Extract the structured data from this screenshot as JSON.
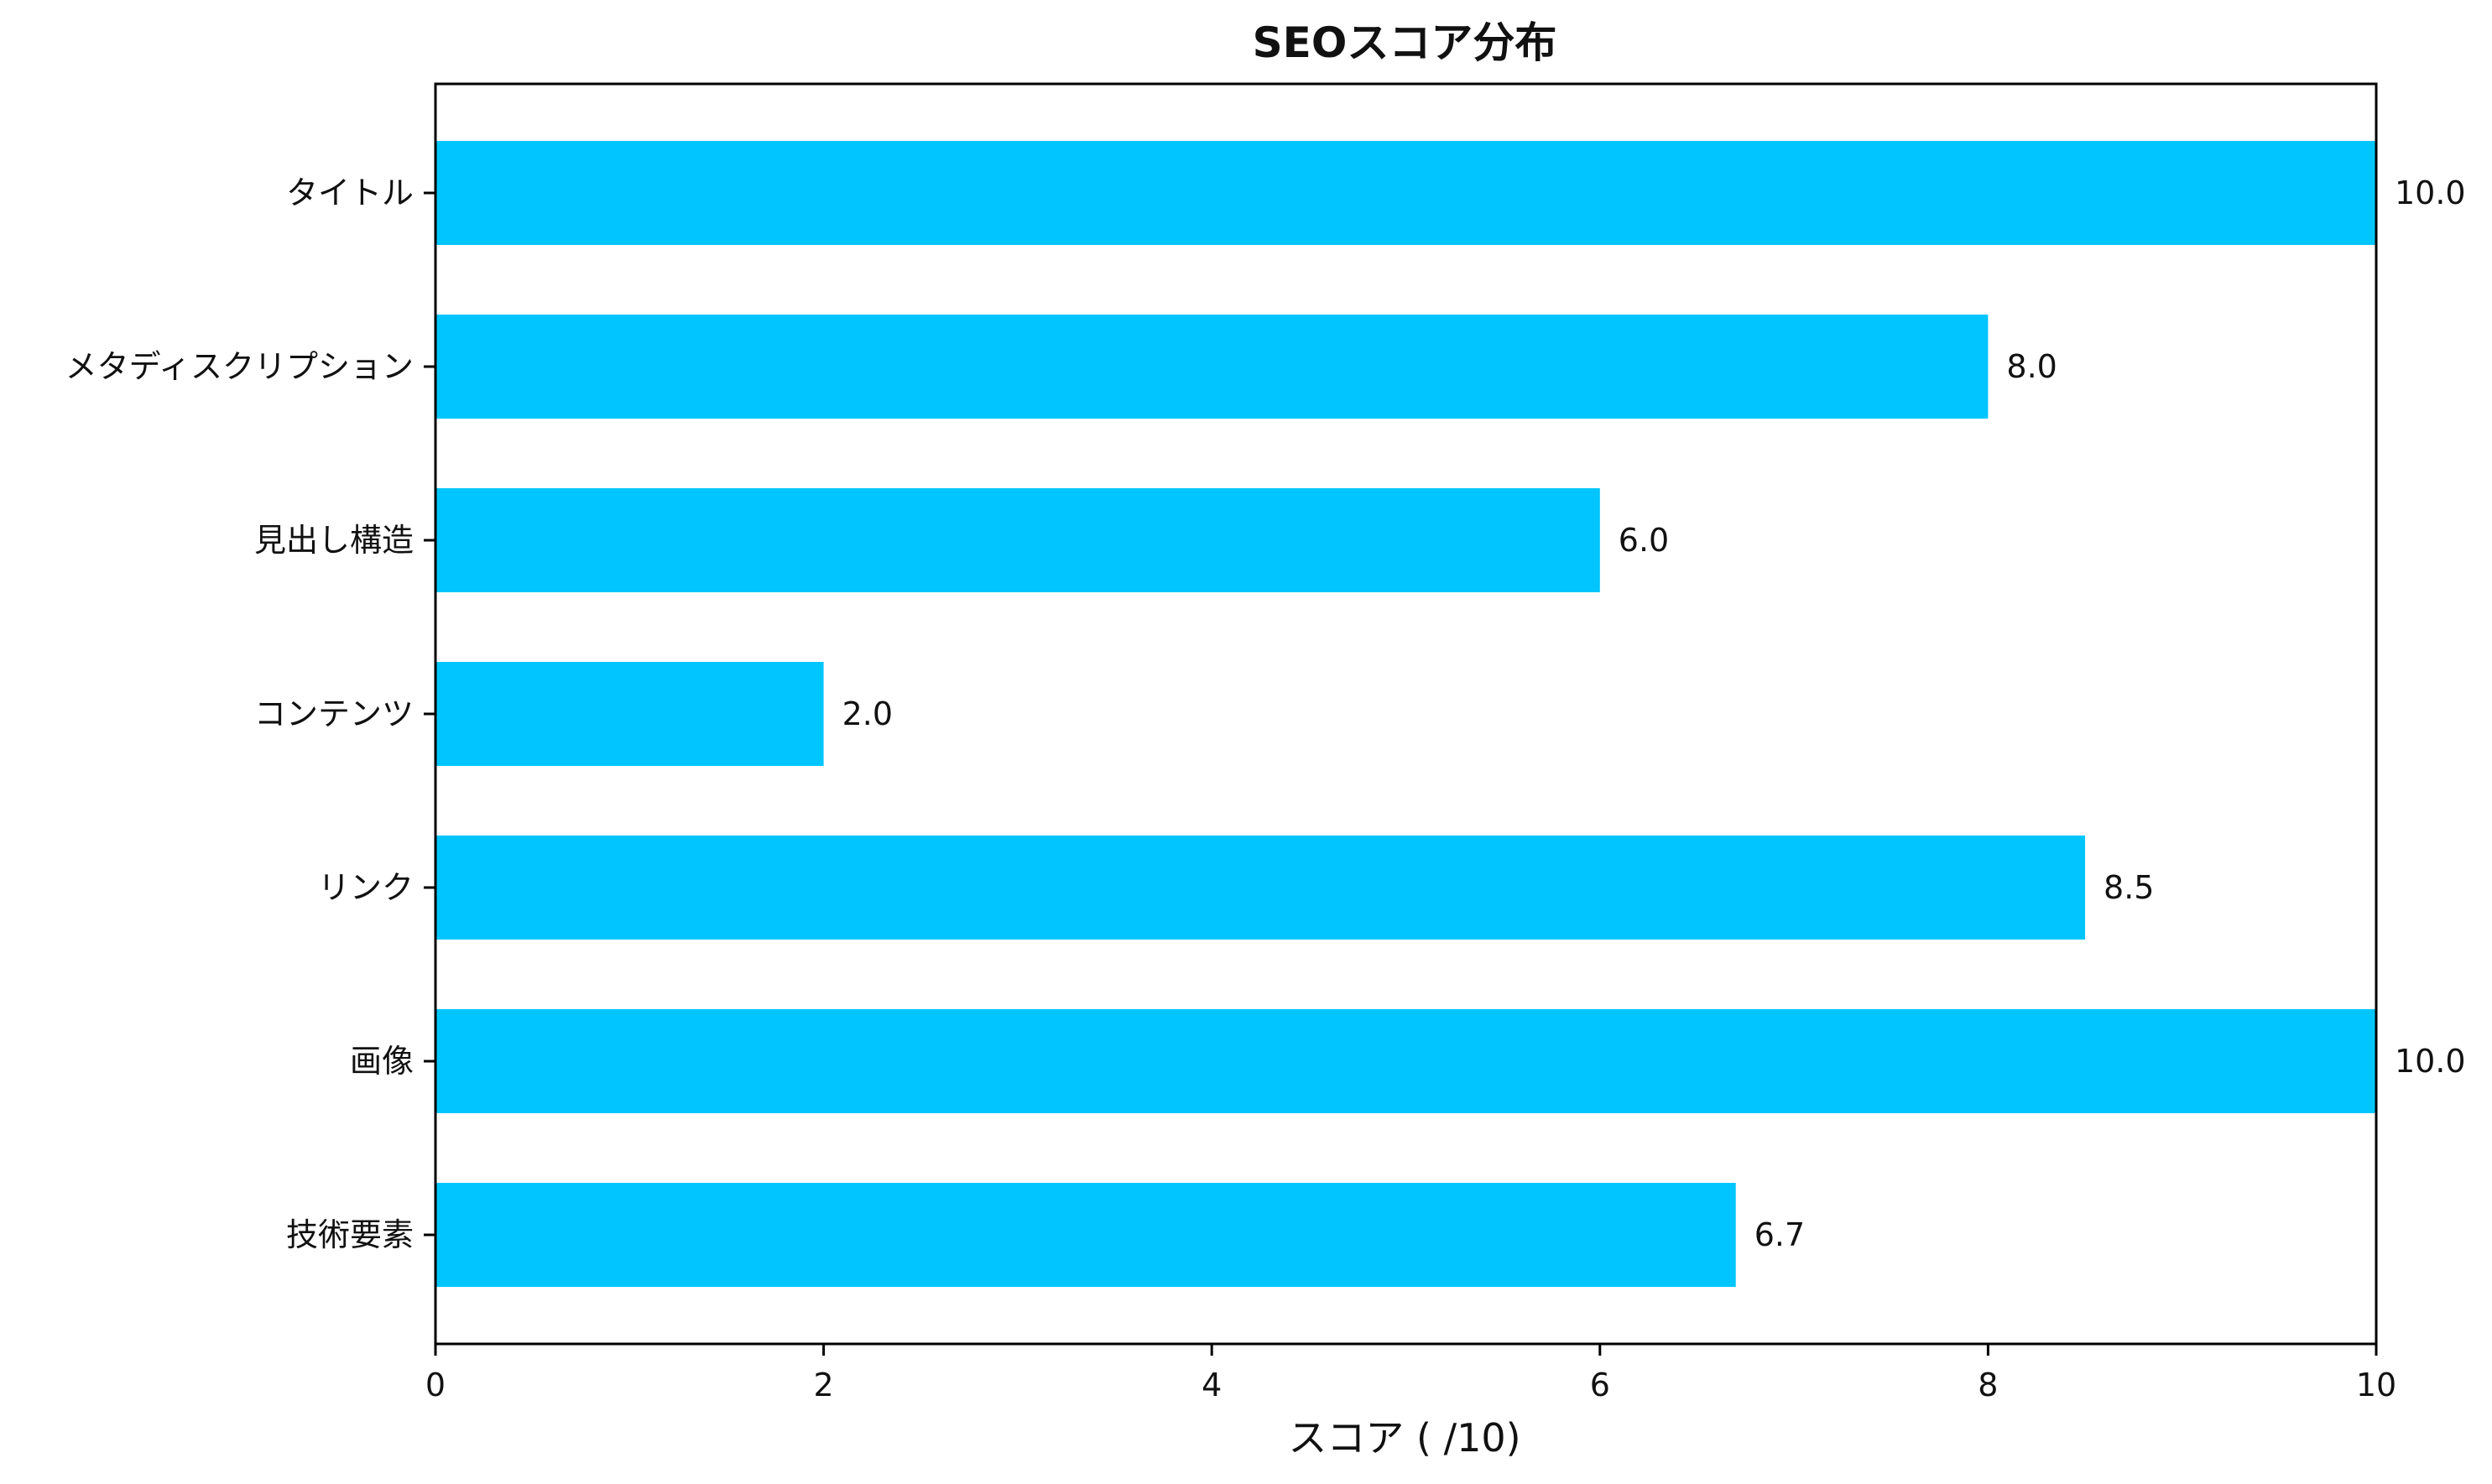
{
  "chart_data": {
    "type": "bar",
    "orientation": "horizontal",
    "title": "SEOスコア分布",
    "xlabel": "スコア ( /10)",
    "ylabel": "",
    "categories": [
      "タイトル",
      "メタディスクリプション",
      "見出し構造",
      "コンテンツ",
      "リンク",
      "画像",
      "技術要素"
    ],
    "values": [
      10.0,
      8.0,
      6.0,
      2.0,
      8.5,
      10.0,
      6.7
    ],
    "value_labels": [
      "10.0",
      "8.0",
      "6.0",
      "2.0",
      "8.5",
      "10.0",
      "6.7"
    ],
    "xlim": [
      0,
      10
    ],
    "xticks": [
      0,
      2,
      4,
      6,
      8,
      10
    ],
    "xtick_labels": [
      "0",
      "2",
      "4",
      "6",
      "8",
      "10"
    ],
    "grid": false,
    "bar_color": "#00c5ff"
  }
}
